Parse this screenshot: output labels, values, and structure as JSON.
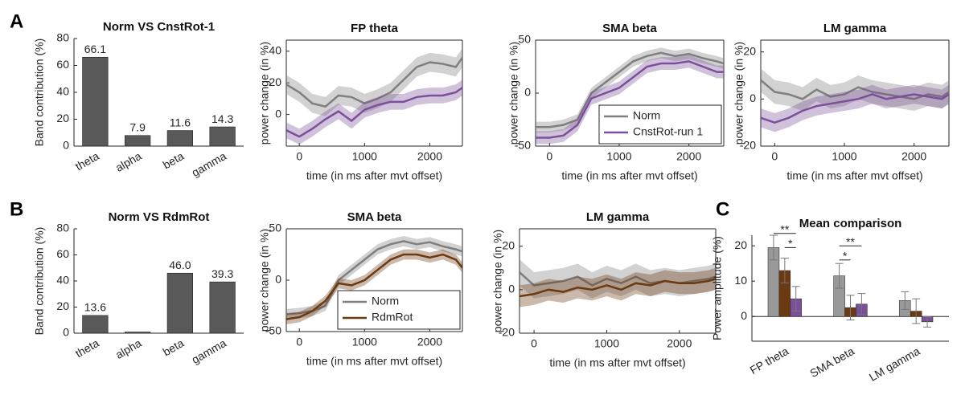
{
  "chart_data": [
    {
      "type": "bar",
      "panel": "A",
      "title": "Norm VS CnstRot-1",
      "y_label": "Band contribution (%)",
      "categories": [
        "theta",
        "alpha",
        "beta",
        "gamma"
      ],
      "values": [
        66.1,
        7.9,
        11.6,
        14.3
      ],
      "color": "#595959",
      "ylim": [
        0,
        80
      ],
      "yticks": [
        0,
        20,
        40,
        60,
        80
      ]
    },
    {
      "type": "line",
      "title": "FP theta",
      "x_label": "time (in ms after mvt offset)",
      "y_label": "power change (in %)",
      "x": [
        -200,
        0,
        200,
        400,
        600,
        800,
        1000,
        1200,
        1400,
        1600,
        1800,
        2000,
        2200,
        2400,
        2500
      ],
      "xlim": [
        -200,
        2500
      ],
      "xticks": [
        0,
        1000,
        2000
      ],
      "ylim": [
        -20,
        47
      ],
      "yticks": [
        0,
        20,
        40
      ],
      "series": [
        {
          "color": "#7f7f7f",
          "error": 6,
          "values": [
            19,
            14,
            7,
            5,
            12,
            11,
            7,
            10,
            14,
            22,
            30,
            33,
            32,
            30,
            36
          ]
        },
        {
          "color": "#7b4f9a",
          "error": 5,
          "values": [
            -10,
            -14,
            -9,
            -3,
            2,
            -4,
            3,
            6,
            8,
            8,
            11,
            12,
            12,
            14,
            17
          ]
        }
      ]
    },
    {
      "type": "line",
      "title": "SMA beta",
      "x_label": "time (in ms after mvt offset)",
      "y_label": "power change (in %)",
      "x": [
        -200,
        0,
        200,
        400,
        600,
        800,
        1000,
        1200,
        1400,
        1600,
        1800,
        2000,
        2200,
        2400,
        2500
      ],
      "xlim": [
        -200,
        2500
      ],
      "xticks": [
        0,
        1000,
        2000
      ],
      "ylim": [
        -50,
        50
      ],
      "yticks": [
        -50,
        0,
        50
      ],
      "legend": "lower right",
      "series": [
        {
          "name": "Norm",
          "color": "#7f7f7f",
          "error": 5,
          "values": [
            -32,
            -32,
            -30,
            -25,
            0,
            10,
            20,
            30,
            35,
            38,
            35,
            37,
            33,
            30,
            28
          ]
        },
        {
          "name": "CnstRot-run 1",
          "color": "#7b4f9a",
          "error": 6,
          "values": [
            -42,
            -42,
            -40,
            -30,
            -5,
            0,
            5,
            15,
            25,
            28,
            28,
            30,
            25,
            20,
            20
          ]
        }
      ]
    },
    {
      "type": "line",
      "title": "LM gamma",
      "x_label": "time (in ms after mvt offset)",
      "y_label": "power change (in %)",
      "x": [
        -200,
        0,
        200,
        400,
        600,
        800,
        1000,
        1200,
        1400,
        1600,
        1800,
        2000,
        2200,
        2400,
        2500
      ],
      "xlim": [
        -200,
        2500
      ],
      "xticks": [
        0,
        1000,
        2000
      ],
      "ylim": [
        -20,
        25
      ],
      "yticks": [
        -20,
        0,
        20
      ],
      "series": [
        {
          "color": "#7f7f7f",
          "error": 5,
          "values": [
            8,
            3,
            2,
            0,
            4,
            1,
            2,
            5,
            3,
            2,
            1,
            0,
            2,
            1,
            3
          ]
        },
        {
          "color": "#7b4f9a",
          "error": 4,
          "values": [
            -8,
            -10,
            -8,
            -5,
            -3,
            -2,
            -1,
            0,
            2,
            0,
            1,
            2,
            1,
            0,
            2
          ]
        }
      ]
    },
    {
      "type": "bar",
      "panel": "B",
      "title": "Norm VS RdmRot",
      "y_label": "Band contribution (%)",
      "categories": [
        "theta",
        "alpha",
        "beta",
        "gamma"
      ],
      "values": [
        13.6,
        0.9,
        46.0,
        39.3
      ],
      "value_labels": [
        "13.6",
        null,
        "46.0",
        "39.3"
      ],
      "color": "#595959",
      "ylim": [
        0,
        80
      ],
      "yticks": [
        0,
        20,
        40,
        60,
        80
      ]
    },
    {
      "type": "line",
      "title": "SMA beta",
      "x_label": "time (in ms after mvt offset)",
      "y_label": "power change (in %)",
      "x": [
        -200,
        0,
        200,
        400,
        600,
        800,
        1000,
        1200,
        1400,
        1600,
        1800,
        2000,
        2200,
        2400,
        2500
      ],
      "xlim": [
        -200,
        2500
      ],
      "xticks": [
        0,
        1000,
        2000
      ],
      "ylim": [
        -50,
        50
      ],
      "yticks": [
        -50,
        0,
        50
      ],
      "legend": "lower right",
      "series": [
        {
          "name": "Norm",
          "color": "#7f7f7f",
          "error": 5,
          "values": [
            -33,
            -32,
            -30,
            -25,
            0,
            10,
            20,
            30,
            35,
            38,
            35,
            37,
            33,
            30,
            28
          ]
        },
        {
          "name": "RdmRot",
          "color": "#6b3a10",
          "error": 5,
          "values": [
            -38,
            -36,
            -30,
            -20,
            -3,
            -5,
            0,
            10,
            20,
            25,
            25,
            22,
            25,
            20,
            12
          ]
        }
      ]
    },
    {
      "type": "line",
      "title": "LM gamma",
      "x_label": "time (in ms after mvt offset)",
      "y_label": "power change (in %)",
      "x": [
        -200,
        0,
        200,
        400,
        600,
        800,
        1000,
        1200,
        1400,
        1600,
        1800,
        2000,
        2200,
        2400,
        2500
      ],
      "xlim": [
        -200,
        2500
      ],
      "xticks": [
        0,
        1000,
        2000
      ],
      "ylim": [
        -20,
        28
      ],
      "yticks": [
        -20,
        0,
        20
      ],
      "series": [
        {
          "color": "#7f7f7f",
          "error": 6,
          "values": [
            8,
            2,
            3,
            4,
            6,
            2,
            5,
            3,
            6,
            3,
            4,
            3,
            4,
            5,
            6
          ]
        },
        {
          "color": "#6b3a10",
          "error": 5,
          "values": [
            -3,
            -2,
            0,
            -1,
            1,
            0,
            2,
            0,
            3,
            2,
            4,
            3,
            3,
            4,
            5
          ]
        }
      ]
    },
    {
      "type": "bar",
      "panel": "C",
      "title": "Mean comparison",
      "y_label": "Power amplitude (%)",
      "categories": [
        "FP theta",
        "SMA beta",
        "LM gamma"
      ],
      "ylim": [
        -7,
        23
      ],
      "yticks": [
        0,
        10,
        20
      ],
      "series": [
        {
          "color": "#999999",
          "values": [
            19.5,
            11.5,
            4.5
          ],
          "errors": [
            3.5,
            3.5,
            2.5
          ]
        },
        {
          "color": "#6b3a10",
          "values": [
            13,
            2.5,
            1.5
          ],
          "errors": [
            3.5,
            3.5,
            3.5
          ]
        },
        {
          "color": "#7b4f9a",
          "values": [
            5,
            3.5,
            -1.5
          ],
          "errors": [
            3.5,
            3,
            1.5
          ]
        }
      ],
      "annotations": [
        "**",
        "*",
        "*",
        "**"
      ]
    }
  ]
}
